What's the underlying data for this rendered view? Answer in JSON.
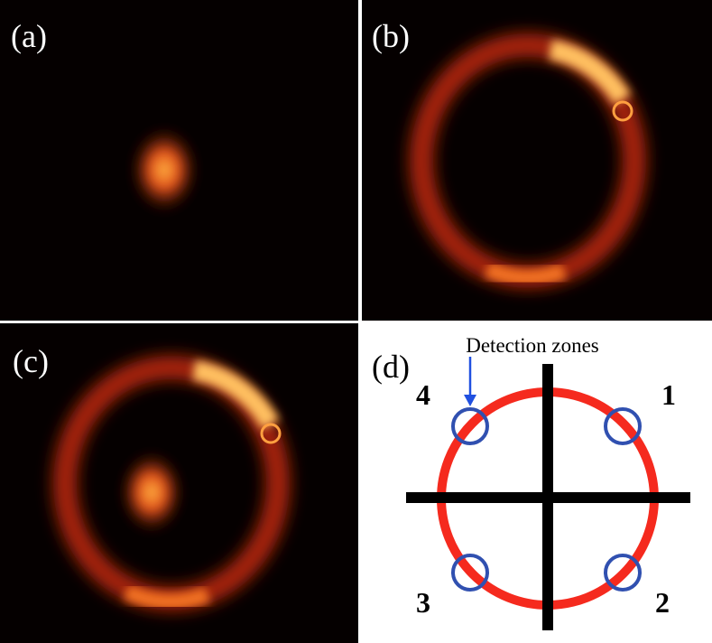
{
  "panels": [
    {
      "label": "(a)"
    },
    {
      "label": "(b)"
    },
    {
      "label": "(c)"
    },
    {
      "label": "(d)"
    }
  ],
  "diagram": {
    "annotation": "Detection zones",
    "zones": [
      "1",
      "2",
      "3",
      "4"
    ]
  }
}
